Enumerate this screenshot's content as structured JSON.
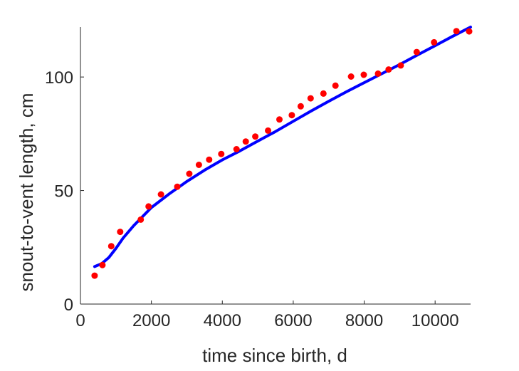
{
  "chart_data": {
    "type": "scatter",
    "title": "",
    "xlabel": "time since birth, d",
    "ylabel": "snout-to-vent length, cm",
    "xlim": [
      0,
      11000
    ],
    "ylim": [
      0,
      122
    ],
    "x_ticks": [
      0,
      2000,
      4000,
      6000,
      8000,
      10000
    ],
    "x_tick_labels": [
      "0",
      "2000",
      "4000",
      "6000",
      "8000",
      "10000"
    ],
    "y_ticks": [
      0,
      50,
      100
    ],
    "y_tick_labels": [
      "0",
      "50",
      "100"
    ],
    "grid": false,
    "legend": "none",
    "series": [
      {
        "type": "scatter",
        "color": "#ff0000",
        "points": [
          [
            400,
            12.5
          ],
          [
            620,
            17.2
          ],
          [
            870,
            25.5
          ],
          [
            1120,
            31.8
          ],
          [
            1700,
            37.2
          ],
          [
            1920,
            43.0
          ],
          [
            2270,
            48.3
          ],
          [
            2730,
            51.7
          ],
          [
            3070,
            57.4
          ],
          [
            3340,
            61.3
          ],
          [
            3630,
            63.6
          ],
          [
            3970,
            66.1
          ],
          [
            4400,
            68.2
          ],
          [
            4660,
            71.6
          ],
          [
            4930,
            73.8
          ],
          [
            5290,
            76.4
          ],
          [
            5610,
            81.3
          ],
          [
            5960,
            83.2
          ],
          [
            6210,
            87.1
          ],
          [
            6490,
            90.6
          ],
          [
            6850,
            92.7
          ],
          [
            7190,
            96.2
          ],
          [
            7630,
            100.2
          ],
          [
            7990,
            101.0
          ],
          [
            8390,
            101.5
          ],
          [
            8690,
            103.3
          ],
          [
            9030,
            105.1
          ],
          [
            9480,
            111.0
          ],
          [
            9970,
            115.3
          ],
          [
            10600,
            120.2
          ],
          [
            10960,
            120.1
          ]
        ]
      },
      {
        "type": "line",
        "color": "#0000ff",
        "points": [
          [
            400,
            16.5
          ],
          [
            600,
            17.8
          ],
          [
            800,
            20.5
          ],
          [
            1000,
            24.5
          ],
          [
            1200,
            29.0
          ],
          [
            1500,
            34.5
          ],
          [
            2000,
            42.5
          ],
          [
            2500,
            48.5
          ],
          [
            3000,
            54.0
          ],
          [
            3500,
            59.0
          ],
          [
            4000,
            63.5
          ],
          [
            4500,
            67.5
          ],
          [
            5000,
            71.8
          ],
          [
            5500,
            76.0
          ],
          [
            6000,
            80.5
          ],
          [
            6500,
            85.0
          ],
          [
            7000,
            89.3
          ],
          [
            7500,
            93.5
          ],
          [
            8000,
            97.5
          ],
          [
            8500,
            101.5
          ],
          [
            9000,
            105.5
          ],
          [
            9500,
            109.7
          ],
          [
            10000,
            113.8
          ],
          [
            10500,
            118.0
          ],
          [
            11000,
            122.0
          ]
        ]
      }
    ]
  }
}
